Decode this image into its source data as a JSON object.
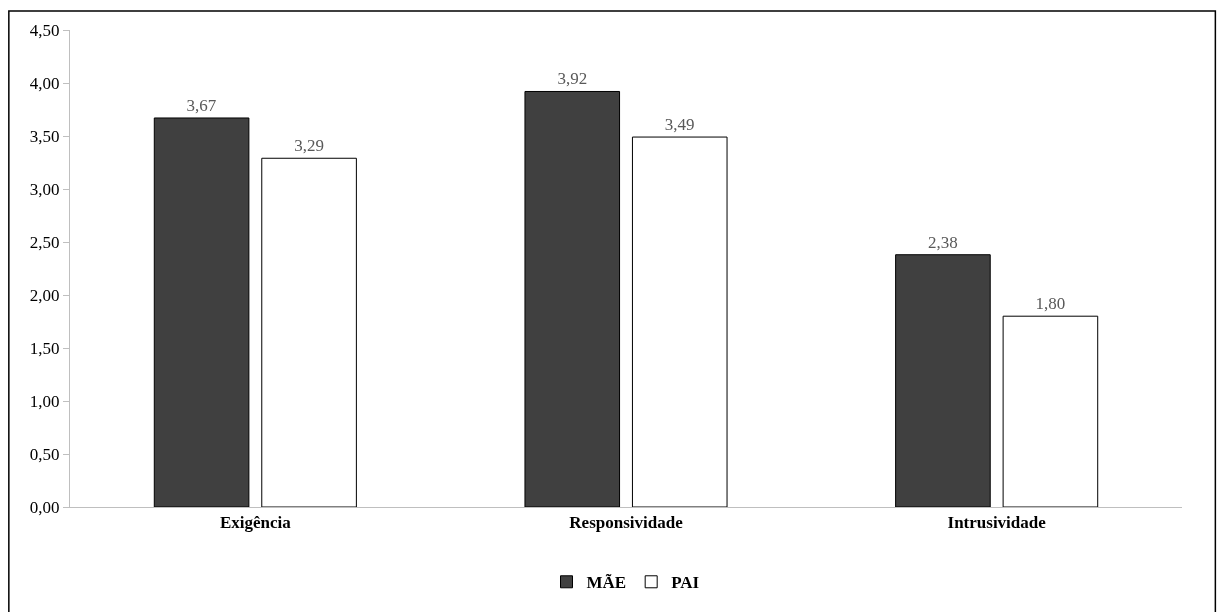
{
  "chart_data": {
    "type": "bar",
    "categories": [
      "Exigência",
      "Responsividade",
      "Intrusividade"
    ],
    "series": [
      {
        "name": "MÃE",
        "color": "#404040",
        "values": [
          3.67,
          3.92,
          2.38
        ],
        "value_labels": [
          "3,67",
          "3,92",
          "2,38"
        ]
      },
      {
        "name": "PAI",
        "color": "#ffffff",
        "values": [
          3.29,
          3.49,
          1.8
        ],
        "value_labels": [
          "3,29",
          "3,49",
          "1,80"
        ]
      }
    ],
    "ylim": [
      0,
      4.5
    ],
    "yticks": [
      {
        "value": 0,
        "label": "0,00"
      },
      {
        "value": 0.5,
        "label": "0,50"
      },
      {
        "value": 1,
        "label": "1,00"
      },
      {
        "value": 1.5,
        "label": "1,50"
      },
      {
        "value": 2,
        "label": "2,00"
      },
      {
        "value": 2.5,
        "label": "2,50"
      },
      {
        "value": 3,
        "label": "3,00"
      },
      {
        "value": 3.5,
        "label": "3,50"
      },
      {
        "value": 4,
        "label": "4,00"
      },
      {
        "value": 4.5,
        "label": "4,50"
      }
    ],
    "legend": "bottom"
  }
}
